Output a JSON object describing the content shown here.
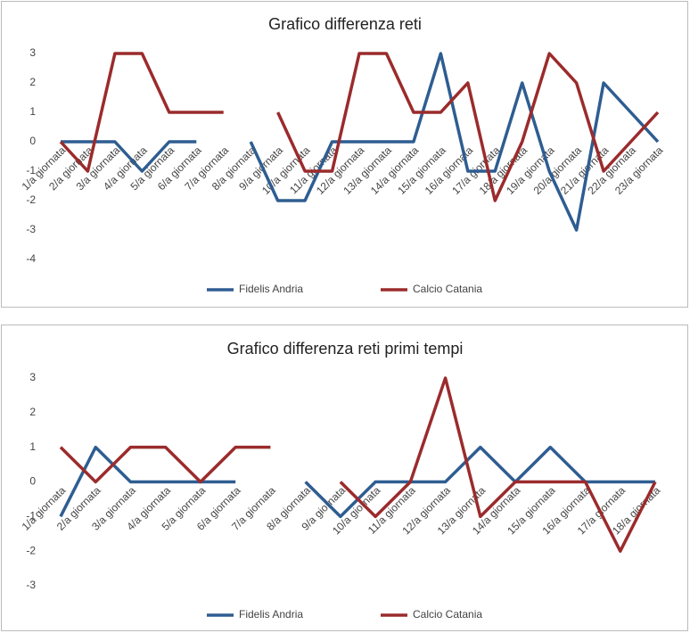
{
  "chart_data": [
    {
      "type": "line",
      "title": "Grafico differenza reti",
      "categories": [
        "1/a giornata",
        "2/a giornata",
        "3/a giornata",
        "4/a giornata",
        "5/a giornata",
        "6/a giornata",
        "7/a giornata",
        "8/a giornata",
        "9/a giornata",
        "10/a giornata",
        "11/a giornata",
        "12/a giornata",
        "13/a giornata",
        "14/a giornata",
        "15/a giornata",
        "16/a giornata",
        "17/a giornata",
        "18/a giornata",
        "19/a giornata",
        "20/a giornata",
        "21/a giornata",
        "22/a giornata",
        "23/a giornata"
      ],
      "series": [
        {
          "name": "Fidelis Andria",
          "color": "#2e5d91",
          "values": [
            0,
            0,
            0,
            -1,
            0,
            0,
            null,
            0,
            -2,
            -2,
            0,
            0,
            0,
            0,
            3,
            -1,
            -1,
            2,
            -1,
            -3,
            2,
            1,
            0
          ]
        },
        {
          "name": "Calcio Catania",
          "color": "#9b2b2c",
          "values": [
            0,
            -1,
            3,
            3,
            1,
            1,
            1,
            null,
            1,
            -1,
            -1,
            3,
            3,
            1,
            1,
            2,
            -2,
            0,
            3,
            2,
            -1,
            0,
            1
          ]
        }
      ],
      "ylim": [
        -4,
        3
      ],
      "yticks": [
        3,
        2,
        1,
        0,
        -1,
        -2,
        -3,
        -4
      ],
      "legend": "bottom"
    },
    {
      "type": "line",
      "title": "Grafico differenza reti primi tempi",
      "categories": [
        "1/a giornata",
        "2/a giornata",
        "3/a giornata",
        "4/a giornata",
        "5/a giornata",
        "6/a giornata",
        "7/a giornata",
        "8/a giornata",
        "9/a giornata",
        "10/a giornata",
        "11/a giornata",
        "12/a giornata",
        "13/a giornata",
        "14/a giornata",
        "15/a giornata",
        "16/a giornata",
        "17/a giornata",
        "18/a giornata"
      ],
      "series": [
        {
          "name": "Fidelis Andria",
          "color": "#2e5d91",
          "values": [
            -1,
            1,
            0,
            0,
            0,
            0,
            null,
            0,
            -1,
            0,
            0,
            0,
            1,
            0,
            1,
            0,
            0,
            0
          ]
        },
        {
          "name": "Calcio Catania",
          "color": "#9b2b2c",
          "values": [
            1,
            0,
            1,
            1,
            0,
            1,
            1,
            null,
            0,
            -1,
            0,
            3,
            -1,
            0,
            0,
            0,
            -2,
            0
          ]
        }
      ],
      "ylim": [
        -3,
        3
      ],
      "yticks": [
        3,
        2,
        1,
        0,
        -1,
        -2,
        -3
      ],
      "legend": "bottom"
    }
  ]
}
